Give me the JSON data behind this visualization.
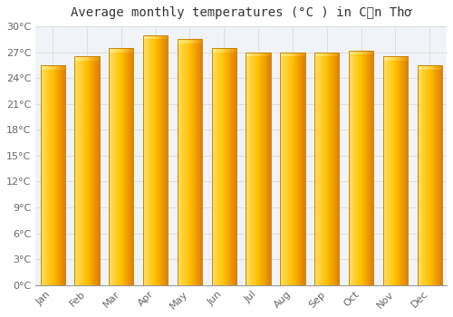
{
  "months": [
    "Jan",
    "Feb",
    "Mar",
    "Apr",
    "May",
    "Jun",
    "Jul",
    "Aug",
    "Sep",
    "Oct",
    "Nov",
    "Dec"
  ],
  "temperatures": [
    25.5,
    26.5,
    27.5,
    29.0,
    28.5,
    27.5,
    27.0,
    27.0,
    27.0,
    27.2,
    26.5,
    25.5
  ],
  "title": "Average monthly temperatures (°C ) in Cần Thơ",
  "bar_color_left": "#FFD966",
  "bar_color_center": "#FFBF00",
  "bar_color_right": "#E08000",
  "bar_edge_color": "#C07800",
  "background_color": "#FFFFFF",
  "plot_bg_color": "#F0F4F8",
  "grid_color": "#DDDDDD",
  "ytick_labels": [
    "0°C",
    "3°C",
    "6°C",
    "9°C",
    "12°C",
    "15°C",
    "18°C",
    "21°C",
    "24°C",
    "27°C",
    "30°C"
  ],
  "ytick_values": [
    0,
    3,
    6,
    9,
    12,
    15,
    18,
    21,
    24,
    27,
    30
  ],
  "ylim": [
    0,
    30
  ],
  "title_fontsize": 10,
  "tick_fontsize": 8
}
